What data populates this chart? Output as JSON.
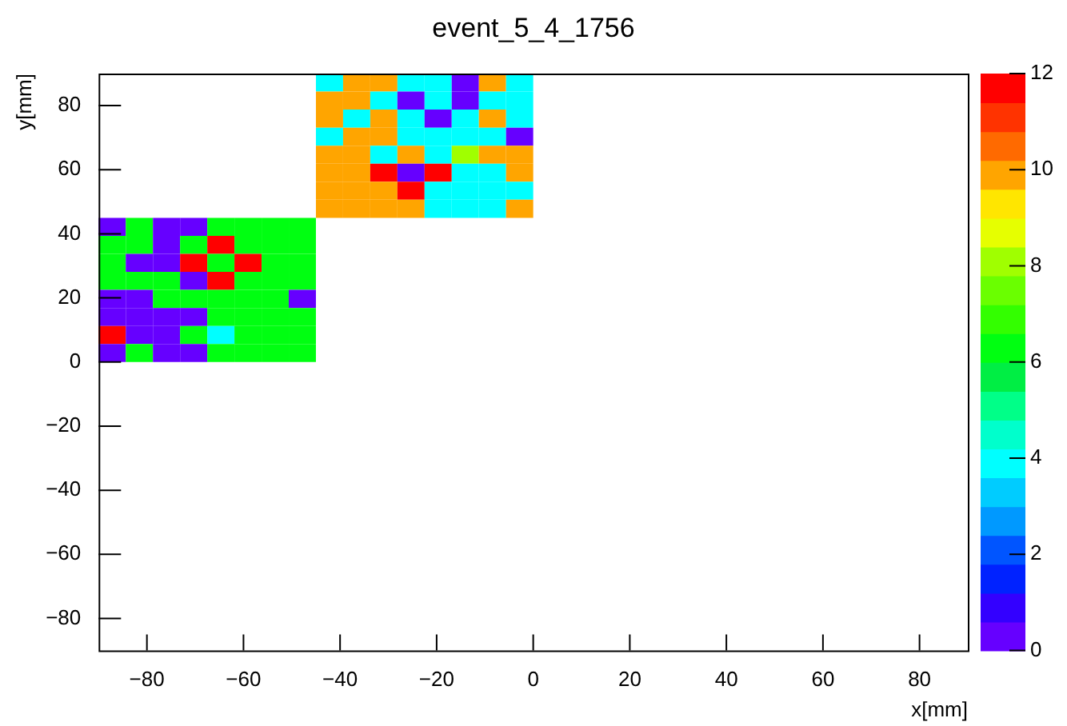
{
  "chart_data": {
    "type": "heatmap",
    "title": "event_5_4_1756",
    "xlabel": "x[mm]",
    "ylabel": "y[mm]",
    "x": [
      -87.1875,
      -81.5625,
      -75.9375,
      -70.3125,
      -64.6875,
      -59.0625,
      -53.4375,
      -47.8125,
      -42.1875,
      -36.5625,
      -30.9375,
      -25.3125,
      -19.6875,
      -14.0625,
      -8.4375,
      -2.8125
    ],
    "y": [
      87.1875,
      81.5625,
      75.9375,
      70.3125,
      64.6875,
      59.0625,
      53.4375,
      47.8125,
      42.1875,
      36.5625,
      30.9375,
      25.3125,
      19.6875,
      14.0625,
      8.4375,
      2.8125
    ],
    "cells": [
      [
        null,
        null,
        null,
        null,
        null,
        null,
        null,
        null,
        3.9,
        9.9,
        9.9,
        3.9,
        3.9,
        0.3,
        9.9,
        3.9
      ],
      [
        null,
        null,
        null,
        null,
        null,
        null,
        null,
        null,
        9.9,
        9.9,
        3.9,
        0.3,
        3.9,
        0.3,
        3.9,
        3.9
      ],
      [
        null,
        null,
        null,
        null,
        null,
        null,
        null,
        null,
        9.9,
        3.9,
        9.9,
        3.9,
        0.3,
        3.9,
        9.9,
        3.9
      ],
      [
        null,
        null,
        null,
        null,
        null,
        null,
        null,
        null,
        3.9,
        9.9,
        9.9,
        3.9,
        3.9,
        3.9,
        3.9,
        0.3
      ],
      [
        null,
        null,
        null,
        null,
        null,
        null,
        null,
        null,
        9.9,
        9.9,
        3.9,
        9.9,
        3.9,
        8.1,
        9.9,
        9.9
      ],
      [
        null,
        null,
        null,
        null,
        null,
        null,
        null,
        null,
        9.9,
        9.9,
        11.7,
        0.3,
        11.7,
        3.9,
        3.9,
        9.9
      ],
      [
        null,
        null,
        null,
        null,
        null,
        null,
        null,
        null,
        9.9,
        9.9,
        9.9,
        11.7,
        3.9,
        3.9,
        3.9,
        3.9
      ],
      [
        null,
        null,
        null,
        null,
        null,
        null,
        null,
        null,
        9.9,
        9.9,
        9.9,
        9.9,
        3.9,
        3.9,
        3.9,
        9.9
      ],
      [
        0.3,
        6.3,
        0.3,
        0.3,
        6.3,
        6.3,
        6.3,
        6.3,
        null,
        null,
        null,
        null,
        null,
        null,
        null,
        null
      ],
      [
        6.3,
        6.3,
        0.3,
        6.3,
        11.7,
        6.3,
        6.3,
        6.3,
        null,
        null,
        null,
        null,
        null,
        null,
        null,
        null
      ],
      [
        6.3,
        0.3,
        0.3,
        11.7,
        6.3,
        11.7,
        6.3,
        6.3,
        null,
        null,
        null,
        null,
        null,
        null,
        null,
        null
      ],
      [
        6.3,
        6.3,
        6.3,
        0.3,
        11.7,
        6.3,
        6.3,
        6.3,
        null,
        null,
        null,
        null,
        null,
        null,
        null,
        null
      ],
      [
        0.3,
        0.3,
        6.3,
        6.3,
        6.3,
        6.3,
        6.3,
        0.3,
        null,
        null,
        null,
        null,
        null,
        null,
        null,
        null
      ],
      [
        0.3,
        0.3,
        0.3,
        0.3,
        6.3,
        6.3,
        6.3,
        6.3,
        null,
        null,
        null,
        null,
        null,
        null,
        null,
        null
      ],
      [
        11.7,
        0.3,
        0.3,
        6.3,
        3.9,
        6.3,
        6.3,
        6.3,
        null,
        null,
        null,
        null,
        null,
        null,
        null,
        null
      ],
      [
        0.3,
        6.3,
        0.3,
        0.3,
        6.3,
        6.3,
        6.3,
        6.3,
        null,
        null,
        null,
        null,
        null,
        null,
        null,
        null
      ]
    ],
    "xlim": [
      -90,
      90
    ],
    "ylim": [
      -90,
      90
    ],
    "xticks": [
      {
        "value": -80,
        "label": "−80"
      },
      {
        "value": -60,
        "label": "−60"
      },
      {
        "value": -40,
        "label": "−40"
      },
      {
        "value": -20,
        "label": "−20"
      },
      0,
      20,
      40,
      60,
      80
    ],
    "yticks": [
      {
        "value": -80,
        "label": "−80"
      },
      {
        "value": -60,
        "label": "−60"
      },
      {
        "value": -40,
        "label": "−40"
      },
      {
        "value": -20,
        "label": "−20"
      },
      0,
      20,
      40,
      60,
      80
    ],
    "clim": [
      0,
      12
    ],
    "cticks": [
      0,
      2,
      4,
      6,
      8,
      10,
      12
    ],
    "grid": false,
    "legend": false
  }
}
